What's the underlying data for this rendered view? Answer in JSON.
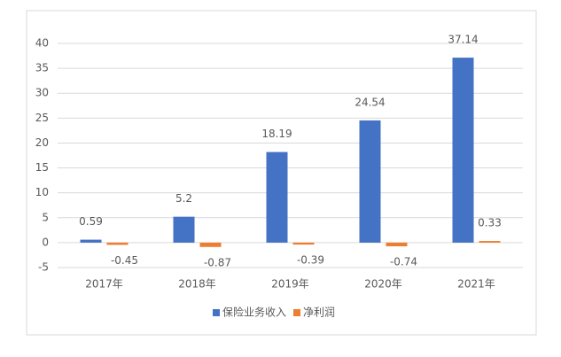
{
  "chart_data": {
    "type": "bar",
    "categories": [
      "2017年",
      "2018年",
      "2019年",
      "2020年",
      "2021年"
    ],
    "series": [
      {
        "name": "保险业务收入",
        "color": "#4472c4",
        "values": [
          0.59,
          5.2,
          18.19,
          24.54,
          37.14
        ]
      },
      {
        "name": "净利润",
        "color": "#ed7d31",
        "values": [
          -0.45,
          -0.87,
          -0.39,
          -0.74,
          0.33
        ]
      }
    ],
    "ylim": [
      -5,
      40
    ],
    "yticks": [
      -5,
      0,
      5,
      10,
      15,
      20,
      25,
      30,
      35,
      40
    ],
    "grid": true,
    "legend": "bottom"
  }
}
